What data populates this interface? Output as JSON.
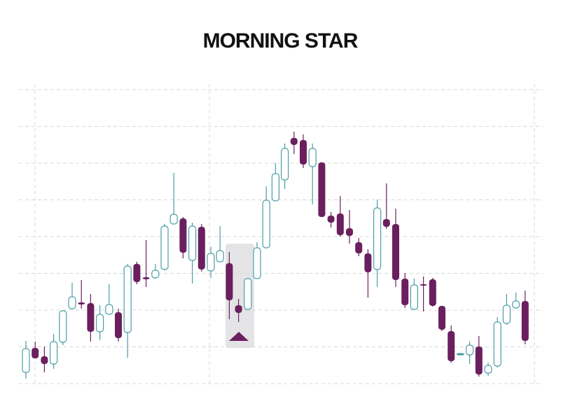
{
  "chart_data": {
    "type": "candlestick",
    "title": "MORNING STAR",
    "up_color": "#4a9ea6",
    "down_color": "#6b1f5e",
    "ylim": [
      0,
      420
    ],
    "yticks": [
      0,
      52.5,
      105,
      157.5,
      210,
      262.5,
      315,
      367.5,
      420
    ],
    "grid": true,
    "open": [
      16,
      51,
      39,
      28,
      59,
      107,
      116,
      115,
      74,
      99,
      102,
      73,
      171,
      152,
      151,
      163,
      228,
      236,
      176,
      224,
      161,
      174,
      172,
      112,
      106,
      150,
      194,
      261,
      291,
      351,
      348,
      310,
      316,
      240,
      243,
      222,
      202,
      186,
      163,
      235,
      228,
      150,
      106,
      142,
      149,
      111,
      75,
      41,
      41,
      53,
      15,
      25,
      86,
      108,
      118
    ],
    "close": [
      50,
      36,
      28,
      60,
      104,
      124,
      113,
      74,
      99,
      113,
      65,
      168,
      145,
      149,
      162,
      225,
      242,
      187,
      225,
      163,
      186,
      190,
      119,
      101,
      150,
      194,
      262,
      300,
      336,
      341,
      313,
      336,
      238,
      230,
      212,
      211,
      186,
      159,
      251,
      224,
      148,
      112,
      141,
      140,
      111,
      77,
      32,
      43,
      55,
      13,
      26,
      88,
      112,
      118,
      61
    ],
    "high": [
      61,
      60,
      53,
      71,
      104,
      144,
      148,
      128,
      112,
      142,
      107,
      171,
      174,
      205,
      171,
      228,
      301,
      238,
      230,
      228,
      196,
      225,
      188,
      121,
      150,
      202,
      282,
      315,
      343,
      360,
      356,
      343,
      316,
      245,
      268,
      248,
      208,
      192,
      263,
      286,
      250,
      158,
      150,
      153,
      151,
      111,
      83,
      43,
      60,
      68,
      30,
      95,
      128,
      130,
      133
    ],
    "low": [
      7,
      36,
      16,
      21,
      55,
      107,
      107,
      60,
      62,
      99,
      60,
      37,
      142,
      138,
      150,
      162,
      228,
      179,
      143,
      160,
      151,
      174,
      92,
      88,
      106,
      150,
      194,
      261,
      278,
      328,
      308,
      256,
      238,
      223,
      210,
      200,
      182,
      123,
      138,
      221,
      138,
      108,
      105,
      103,
      110,
      75,
      30,
      41,
      28,
      10,
      11,
      23,
      84,
      108,
      56
    ]
  }
}
